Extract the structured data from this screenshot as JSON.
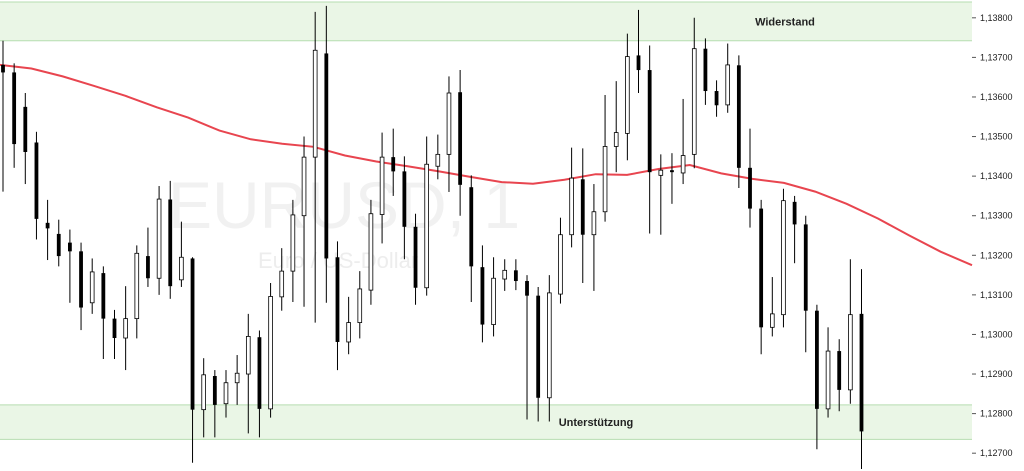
{
  "chart_data": {
    "type": "candlestick",
    "watermark": {
      "symbol": "EURUSD, 1",
      "description": "Euro / US-Dollar"
    },
    "y_axis": {
      "ylim": [
        1.12655,
        1.13845
      ],
      "ticks": [
        "1,13800",
        "1,13700",
        "1,13600",
        "1,13500",
        "1,13400",
        "1,13300",
        "1,13200",
        "1,13100",
        "1,13000",
        "1,12900",
        "1,12800",
        "1,12700"
      ]
    },
    "zones": [
      {
        "label": "Widerstand",
        "from": 1.13742,
        "to": 1.1384,
        "color": "#eaf6e6"
      },
      {
        "label": "Unterstützung",
        "from": 1.12735,
        "to": 1.12822,
        "color": "#eaf6e6"
      }
    ],
    "moving_average": {
      "color": "#e8454f",
      "values": [
        1.13681,
        1.13672,
        1.13652,
        1.13628,
        1.13603,
        1.13574,
        1.13548,
        1.13515,
        1.13493,
        1.13482,
        1.13474,
        1.13452,
        1.13437,
        1.13425,
        1.13412,
        1.13398,
        1.13385,
        1.13381,
        1.13391,
        1.13405,
        1.13403,
        1.13418,
        1.13428,
        1.13407,
        1.13393,
        1.13383,
        1.13361,
        1.1333,
        1.13293,
        1.1325,
        1.13209,
        1.13175
      ]
    },
    "candles": [
      [
        1.13681,
        1.13662,
        1.13742,
        1.13361
      ],
      [
        1.13662,
        1.13481,
        1.13685,
        1.13421
      ],
      [
        1.13575,
        1.13461,
        1.1361,
        1.1338
      ],
      [
        1.13485,
        1.13292,
        1.13512,
        1.1324
      ],
      [
        1.13282,
        1.13268,
        1.1334,
        1.13188
      ],
      [
        1.13254,
        1.13198,
        1.1329,
        1.13172
      ],
      [
        1.13232,
        1.1321,
        1.13265,
        1.1308
      ],
      [
        1.1321,
        1.13068,
        1.13232,
        1.13011
      ],
      [
        1.1308,
        1.13158,
        1.13192,
        1.13052
      ],
      [
        1.13155,
        1.1304,
        1.13172,
        1.12938
      ],
      [
        1.1304,
        1.12991,
        1.13062,
        1.12938
      ],
      [
        1.12991,
        1.1304,
        1.13122,
        1.1291
      ],
      [
        1.1304,
        1.13205,
        1.13225,
        1.1299
      ],
      [
        1.13198,
        1.13142,
        1.1327,
        1.1312
      ],
      [
        1.13142,
        1.13342,
        1.13375,
        1.131
      ],
      [
        1.13341,
        1.13122,
        1.13388,
        1.1309
      ],
      [
        1.13138,
        1.13195,
        1.13285,
        1.1312
      ],
      [
        1.13192,
        1.1281,
        1.13195,
        1.12676
      ],
      [
        1.1281,
        1.12898,
        1.1294,
        1.1274
      ],
      [
        1.12895,
        1.12822,
        1.1291,
        1.1274
      ],
      [
        1.12825,
        1.12878,
        1.1291,
        1.1279
      ],
      [
        1.12878,
        1.12902,
        1.12948,
        1.12822
      ],
      [
        1.129,
        1.12995,
        1.13052,
        1.1275
      ],
      [
        1.12993,
        1.12812,
        1.1301,
        1.1274
      ],
      [
        1.12812,
        1.13096,
        1.1313,
        1.1279
      ],
      [
        1.13095,
        1.1316,
        1.13218,
        1.1306
      ],
      [
        1.1316,
        1.13302,
        1.1334,
        1.13082
      ],
      [
        1.133,
        1.13448,
        1.135,
        1.1307
      ],
      [
        1.13448,
        1.13718,
        1.13815,
        1.1303
      ],
      [
        1.1371,
        1.13192,
        1.1383,
        1.1308
      ],
      [
        1.13195,
        1.12981,
        1.13235,
        1.1291
      ],
      [
        1.12981,
        1.1303,
        1.13095,
        1.1295
      ],
      [
        1.1303,
        1.13115,
        1.1316,
        1.1299
      ],
      [
        1.13112,
        1.13305,
        1.1334,
        1.13075
      ],
      [
        1.13303,
        1.13448,
        1.1351,
        1.1323
      ],
      [
        1.13448,
        1.13412,
        1.1352,
        1.1335
      ],
      [
        1.13412,
        1.13272,
        1.1345,
        1.1319
      ],
      [
        1.13272,
        1.13118,
        1.13305,
        1.13075
      ],
      [
        1.13118,
        1.1343,
        1.135,
        1.13098
      ],
      [
        1.13425,
        1.13455,
        1.13505,
        1.13392
      ],
      [
        1.13455,
        1.1361,
        1.13652,
        1.1336
      ],
      [
        1.13612,
        1.13378,
        1.13668,
        1.133
      ],
      [
        1.13372,
        1.13172,
        1.13402,
        1.13082
      ],
      [
        1.1317,
        1.13025,
        1.13225,
        1.1298
      ],
      [
        1.13025,
        1.13142,
        1.13195,
        1.12995
      ],
      [
        1.1314,
        1.13162,
        1.1319,
        1.1311
      ],
      [
        1.13162,
        1.13135,
        1.1319,
        1.13112
      ],
      [
        1.13135,
        1.13098,
        1.1315,
        1.12785
      ],
      [
        1.13098,
        1.1284,
        1.1312,
        1.1278
      ],
      [
        1.1284,
        1.13105,
        1.1315,
        1.1278
      ],
      [
        1.13102,
        1.13252,
        1.13295,
        1.13078
      ],
      [
        1.13252,
        1.13395,
        1.13472,
        1.1322
      ],
      [
        1.13392,
        1.13252,
        1.1347,
        1.1313
      ],
      [
        1.13252,
        1.1331,
        1.1338,
        1.1311
      ],
      [
        1.1331,
        1.13475,
        1.13605,
        1.13285
      ],
      [
        1.13475,
        1.1351,
        1.1364,
        1.1341
      ],
      [
        1.13508,
        1.13702,
        1.1376,
        1.1344
      ],
      [
        1.13705,
        1.13668,
        1.1382,
        1.1361
      ],
      [
        1.13668,
        1.1341,
        1.1373,
        1.13255
      ],
      [
        1.13402,
        1.13415,
        1.13455,
        1.13252
      ],
      [
        1.13415,
        1.1341,
        1.13458,
        1.1333
      ],
      [
        1.13408,
        1.13452,
        1.13595,
        1.1338
      ],
      [
        1.13455,
        1.13722,
        1.138,
        1.1342
      ],
      [
        1.13722,
        1.13615,
        1.13748,
        1.1358
      ],
      [
        1.13615,
        1.13579,
        1.13642,
        1.1355
      ],
      [
        1.1358,
        1.13681,
        1.13735,
        1.1356
      ],
      [
        1.1368,
        1.13421,
        1.13705,
        1.1337
      ],
      [
        1.13421,
        1.13318,
        1.1352,
        1.1327
      ],
      [
        1.13318,
        1.13018,
        1.1334,
        1.1295
      ],
      [
        1.13018,
        1.13052,
        1.13145,
        1.12995
      ],
      [
        1.1305,
        1.13338,
        1.13368,
        1.13018
      ],
      [
        1.13335,
        1.13278,
        1.1335,
        1.1318
      ],
      [
        1.13278,
        1.1306,
        1.133,
        1.12955
      ],
      [
        1.1306,
        1.12812,
        1.13075,
        1.1271
      ],
      [
        1.12812,
        1.12958,
        1.13018,
        1.1279
      ],
      [
        1.12958,
        1.1286,
        1.12988,
        1.12806
      ],
      [
        1.1286,
        1.1305,
        1.1319,
        1.12825
      ],
      [
        1.13052,
        1.12755,
        1.13165,
        1.1266
      ]
    ]
  }
}
